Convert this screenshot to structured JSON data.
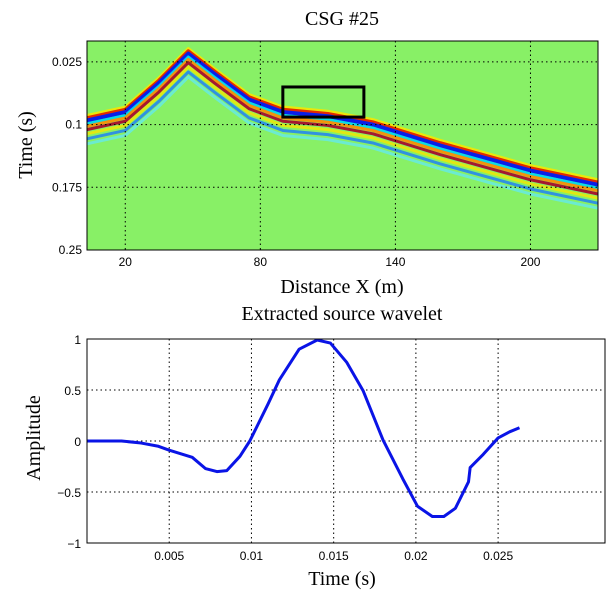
{
  "chart_data": [
    {
      "type": "heatmap",
      "title": "CSG #25",
      "xlabel": "Distance X (m)",
      "ylabel": "Time (s)",
      "xlim": [
        3,
        230
      ],
      "ylim": [
        0,
        0.25
      ],
      "y_reversed": true,
      "xticks": [
        20,
        80,
        140,
        200
      ],
      "xtick_labels": [
        "20",
        "80",
        "140",
        "200"
      ],
      "yticks": [
        0.025,
        0.1,
        0.175,
        0.25
      ],
      "ytick_labels": [
        "0.025",
        "0.1",
        "0.175",
        "0.25"
      ],
      "grid": true,
      "background_color": "#88f066",
      "colormap": "jet",
      "event_arrival": {
        "x": [
          3,
          20,
          35,
          48,
          60,
          75,
          90,
          110,
          130,
          160,
          200,
          230
        ],
        "t": [
          0.095,
          0.085,
          0.05,
          0.015,
          0.04,
          0.07,
          0.085,
          0.09,
          0.1,
          0.125,
          0.155,
          0.172
        ]
      },
      "annotation_box": {
        "x": [
          90,
          126
        ],
        "t": [
          0.055,
          0.091
        ],
        "color": "#000000"
      }
    },
    {
      "type": "line",
      "title": "Extracted source wavelet",
      "xlabel": "Time (s)",
      "ylabel": "Amplitude",
      "xlim": [
        0,
        0.0315
      ],
      "ylim": [
        -1,
        1
      ],
      "xticks": [
        0.005,
        0.01,
        0.015,
        0.02,
        0.025
      ],
      "xtick_labels": [
        "0.005",
        "0.01",
        "0.015",
        "0.02",
        "0.025"
      ],
      "yticks": [
        -1,
        -0.5,
        0,
        0.5,
        1
      ],
      "ytick_labels": [
        "−1",
        "−0.5",
        "0",
        "0.5",
        "1"
      ],
      "grid": true,
      "line_color": "#0a14e6",
      "x": [
        0,
        0.0021,
        0.0033,
        0.0043,
        0.005,
        0.0064,
        0.0072,
        0.0079,
        0.0085,
        0.0093,
        0.0099,
        0.011,
        0.0117,
        0.0129,
        0.014,
        0.0148,
        0.0158,
        0.0168,
        0.018,
        0.0192,
        0.0201,
        0.021,
        0.0217,
        0.0224,
        0.0228,
        0.0232,
        0.0233,
        0.0241,
        0.025,
        0.0257,
        0.0263
      ],
      "y": [
        0,
        0,
        -0.02,
        -0.05,
        -0.09,
        -0.16,
        -0.27,
        -0.3,
        -0.29,
        -0.15,
        0,
        0.36,
        0.6,
        0.9,
        0.99,
        0.96,
        0.77,
        0.49,
        0.01,
        -0.37,
        -0.64,
        -0.74,
        -0.74,
        -0.66,
        -0.53,
        -0.4,
        -0.26,
        -0.13,
        0.03,
        0.09,
        0.13
      ]
    }
  ]
}
